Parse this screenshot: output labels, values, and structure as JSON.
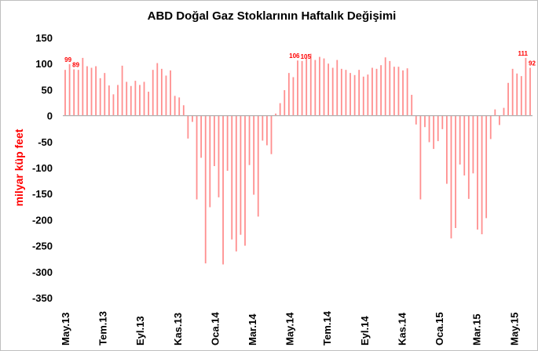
{
  "chart_data": {
    "type": "bar",
    "title": "ABD Doğal Gaz Stoklarının Haftalık Değişimi",
    "xlabel": "",
    "ylabel": "milyar küp feet",
    "ylim": [
      -350,
      150
    ],
    "yticks": [
      150,
      100,
      50,
      0,
      -50,
      -100,
      -150,
      -200,
      -250,
      -300,
      -350
    ],
    "grid": false,
    "bar_color": "#ff8f8f",
    "x_tick_labels": [
      "May.13",
      "Tem.13",
      "Eyl.13",
      "Kas.13",
      "Oca.14",
      "Mar.14",
      "May.14",
      "Tem.14",
      "Eyl.14",
      "Kas.14",
      "Oca.15",
      "Mar.15",
      "May.15"
    ],
    "values": [
      88,
      99,
      89,
      88,
      111,
      95,
      92,
      95,
      72,
      82,
      58,
      41,
      59,
      96,
      65,
      57,
      67,
      59,
      65,
      46,
      88,
      101,
      90,
      77,
      87,
      38,
      35,
      20,
      -44,
      -12,
      -161,
      -81,
      -284,
      -176,
      -97,
      -157,
      -286,
      -106,
      -238,
      -261,
      -229,
      -250,
      -95,
      -152,
      -194,
      -48,
      -57,
      -74,
      4,
      24,
      49,
      82,
      74,
      106,
      105,
      110,
      119,
      107,
      113,
      110,
      100,
      92,
      107,
      90,
      88,
      82,
      78,
      88,
      75,
      79,
      92,
      90,
      97,
      112,
      105,
      94,
      94,
      87,
      91,
      40,
      -17,
      -161,
      -22,
      -51,
      -64,
      -49,
      -26,
      -131,
      -236,
      -216,
      -94,
      -115,
      -160,
      -111,
      -219,
      -228,
      -197,
      -45,
      12,
      -18,
      15,
      63,
      90,
      81,
      76,
      111,
      92
    ],
    "data_labels": [
      {
        "index": 1,
        "text": "99"
      },
      {
        "index": 2,
        "text": "89"
      },
      {
        "index": 53,
        "text": "106"
      },
      {
        "index": 54,
        "text": "105"
      },
      {
        "index": 105,
        "text": "111"
      },
      {
        "index": 106,
        "text": "92"
      }
    ]
  }
}
